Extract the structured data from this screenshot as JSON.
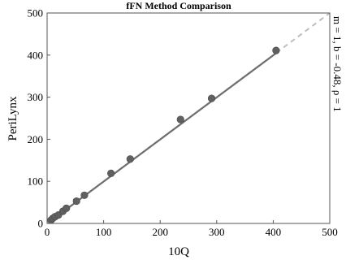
{
  "chart_data": {
    "type": "scatter",
    "title": "fFN Method Comparison",
    "xlabel": "10Q",
    "ylabel": "PeriLynx",
    "xlim": [
      0,
      500
    ],
    "ylim": [
      0,
      500
    ],
    "xticks": [
      "0",
      "100",
      "200",
      "300",
      "400",
      "500"
    ],
    "yticks": [
      "0",
      "100",
      "200",
      "300",
      "400",
      "500"
    ],
    "points": {
      "x": [
        7,
        10,
        14,
        20,
        28,
        34,
        52,
        66,
        113,
        147,
        236,
        291,
        405
      ],
      "y": [
        8,
        12,
        16,
        20,
        29,
        36,
        53,
        67,
        119,
        153,
        247,
        297,
        411
      ]
    },
    "fit_line": {
      "slope": 1,
      "intercept": -0.48
    },
    "identity_line": true,
    "annotation": "m = 1, b = -0.48, ρ = 1",
    "grid": false,
    "colors": {
      "points": "#606060",
      "fit_line": "#6e6e6e",
      "identity_line": "#bdbdbd",
      "axes": "#555555"
    }
  }
}
